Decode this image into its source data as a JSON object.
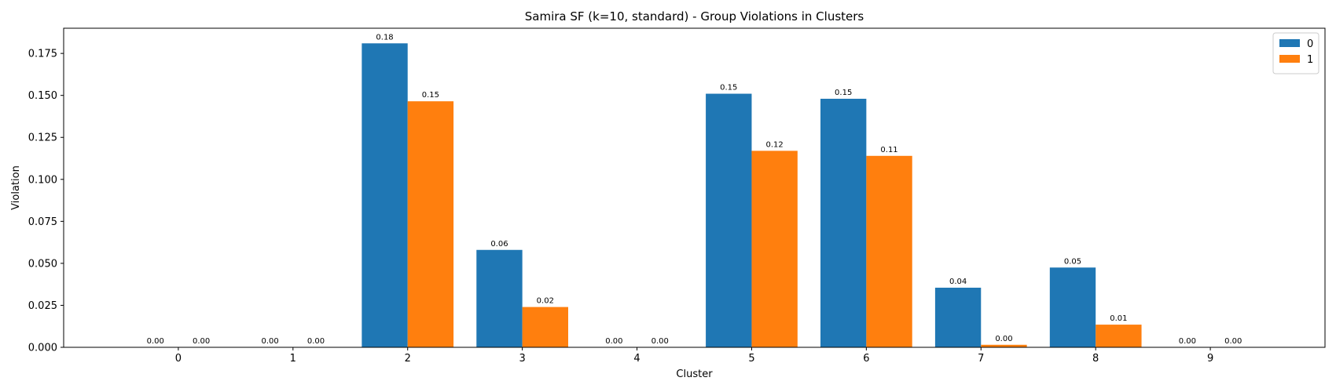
{
  "chart_data": {
    "type": "bar",
    "title": "Samira SF (k=10, standard) - Group Violations in Clusters",
    "xlabel": "Cluster",
    "ylabel": "Violation",
    "categories": [
      "0",
      "1",
      "2",
      "3",
      "4",
      "5",
      "6",
      "7",
      "8",
      "9"
    ],
    "series": [
      {
        "name": "0",
        "color": "#1f77b4",
        "values": [
          0.0,
          0.0,
          0.181,
          0.058,
          0.0,
          0.151,
          0.148,
          0.0355,
          0.0475,
          0.0
        ],
        "labels": [
          "0.00",
          "0.00",
          "0.18",
          "0.06",
          "0.00",
          "0.15",
          "0.15",
          "0.04",
          "0.05",
          "0.00"
        ]
      },
      {
        "name": "1",
        "color": "#ff7f0e",
        "values": [
          0.0,
          0.0,
          0.1465,
          0.024,
          0.0,
          0.117,
          0.114,
          0.0015,
          0.0135,
          0.0
        ],
        "labels": [
          "0.00",
          "0.00",
          "0.15",
          "0.02",
          "0.00",
          "0.12",
          "0.11",
          "0.00",
          "0.01",
          "0.00"
        ]
      }
    ],
    "ylim": [
      0,
      0.19
    ],
    "yticks": [
      "0.000",
      "0.025",
      "0.050",
      "0.075",
      "0.100",
      "0.125",
      "0.150",
      "0.175"
    ],
    "ytick_values": [
      0,
      0.025,
      0.05,
      0.075,
      0.1,
      0.125,
      0.15,
      0.175
    ],
    "grid": false,
    "legend_position": "top-right"
  }
}
